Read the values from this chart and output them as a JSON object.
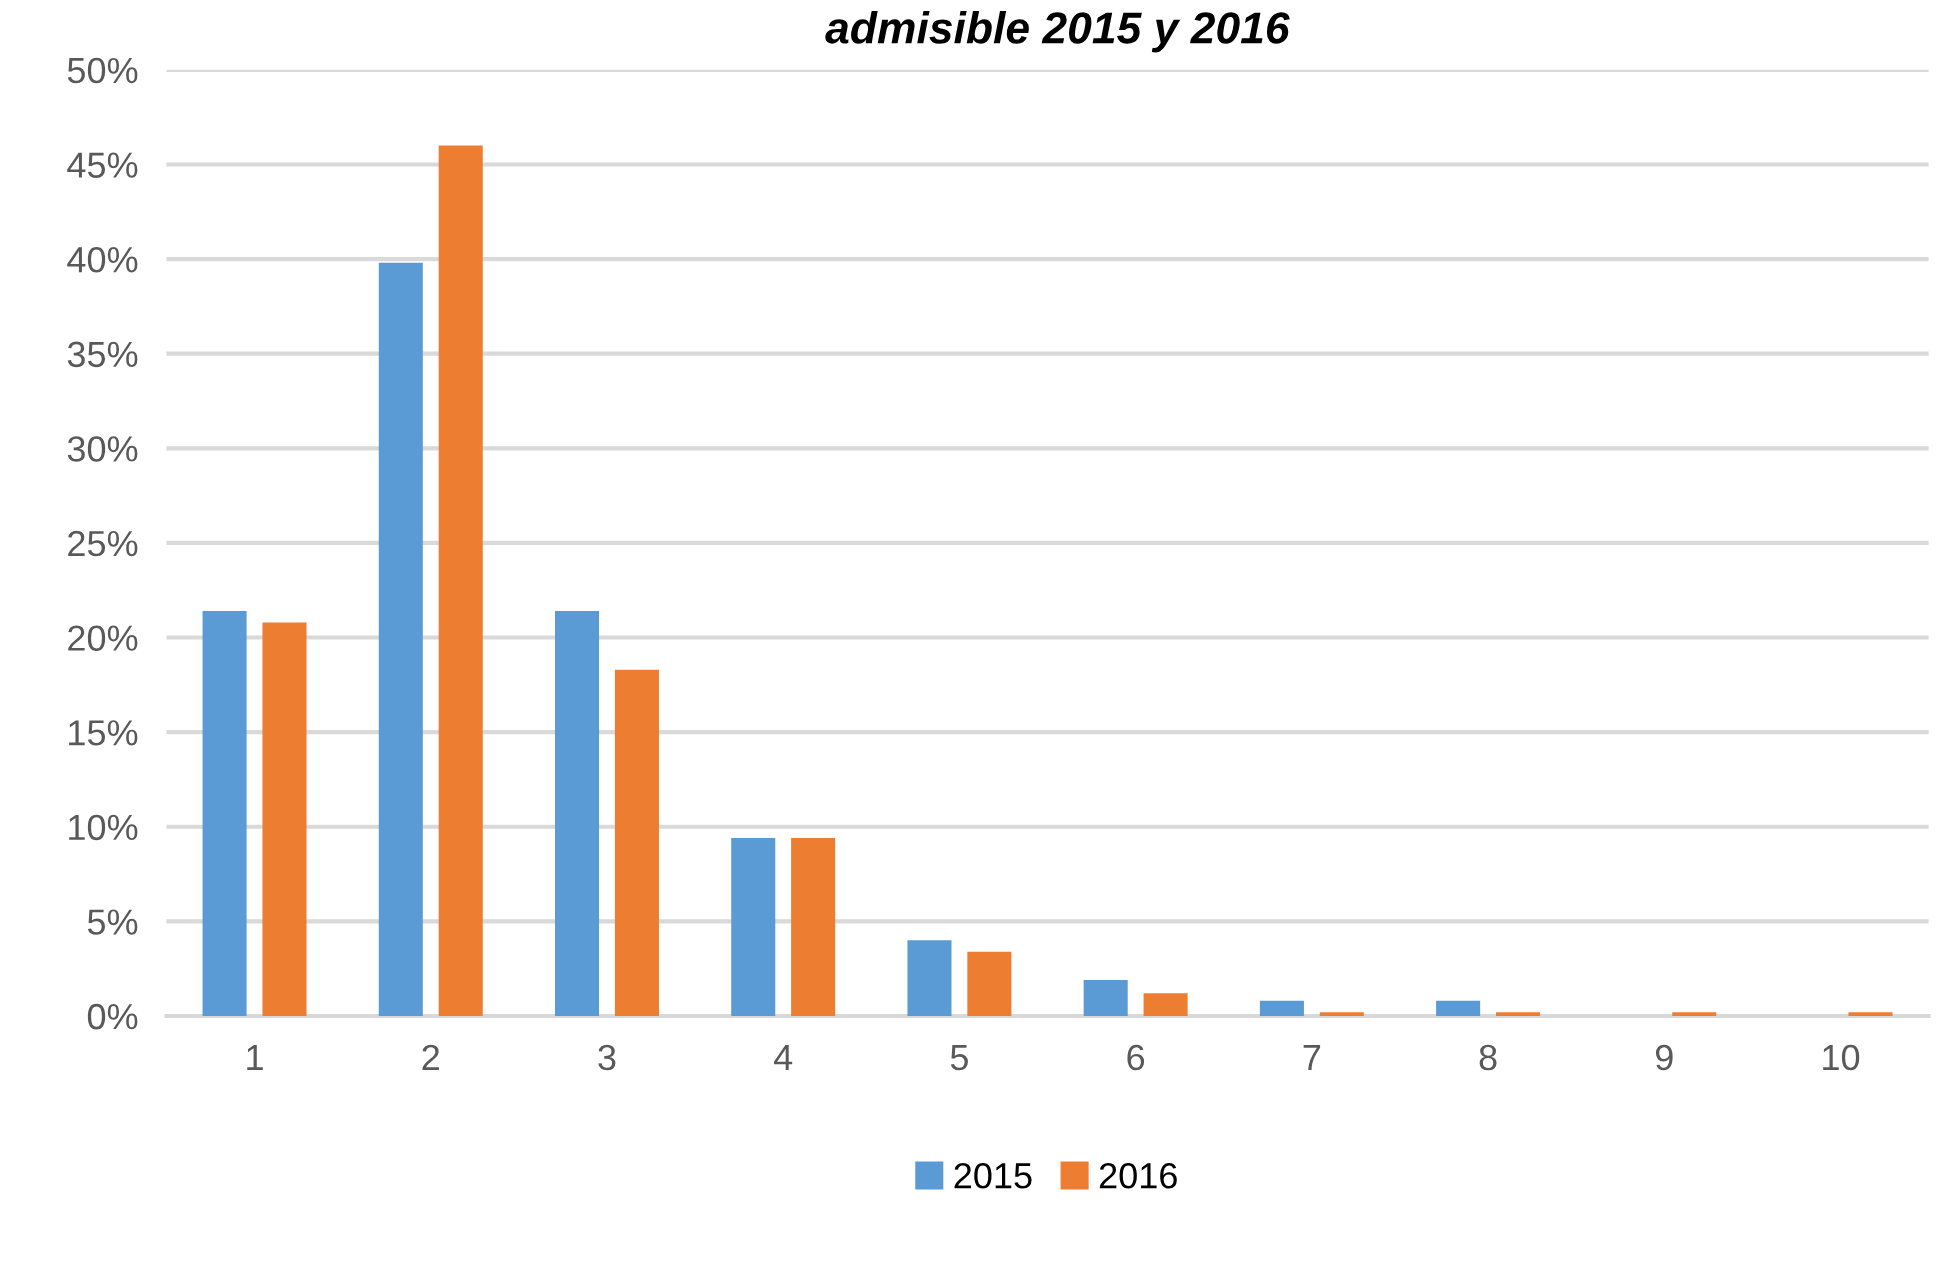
{
  "chart_data": {
    "type": "bar",
    "title": "admisible 2015 y 2016",
    "categories": [
      "1",
      "2",
      "3",
      "4",
      "5",
      "6",
      "7",
      "8",
      "9",
      "10"
    ],
    "series": [
      {
        "name": "2015",
        "color": "#5b9bd5",
        "values": [
          21.4,
          39.8,
          21.4,
          9.4,
          4.0,
          1.9,
          0.8,
          0.8,
          0,
          0
        ]
      },
      {
        "name": "2016",
        "color": "#ed7d31",
        "values": [
          20.8,
          46.0,
          18.3,
          9.4,
          3.4,
          1.2,
          0.2,
          0.2,
          0.2,
          0.2
        ]
      }
    ],
    "ylim": [
      0,
      50
    ],
    "yticks": [
      {
        "value": 0,
        "label": "0%"
      },
      {
        "value": 5,
        "label": "5%"
      },
      {
        "value": 10,
        "label": "10%"
      },
      {
        "value": 15,
        "label": "15%"
      },
      {
        "value": 20,
        "label": "20%"
      },
      {
        "value": 25,
        "label": "25%"
      },
      {
        "value": 30,
        "label": "30%"
      },
      {
        "value": 35,
        "label": "35%"
      },
      {
        "value": 40,
        "label": "40%"
      },
      {
        "value": 45,
        "label": "45%"
      },
      {
        "value": 50,
        "label": "50%"
      }
    ],
    "grid": "y",
    "legend": "bottom"
  }
}
